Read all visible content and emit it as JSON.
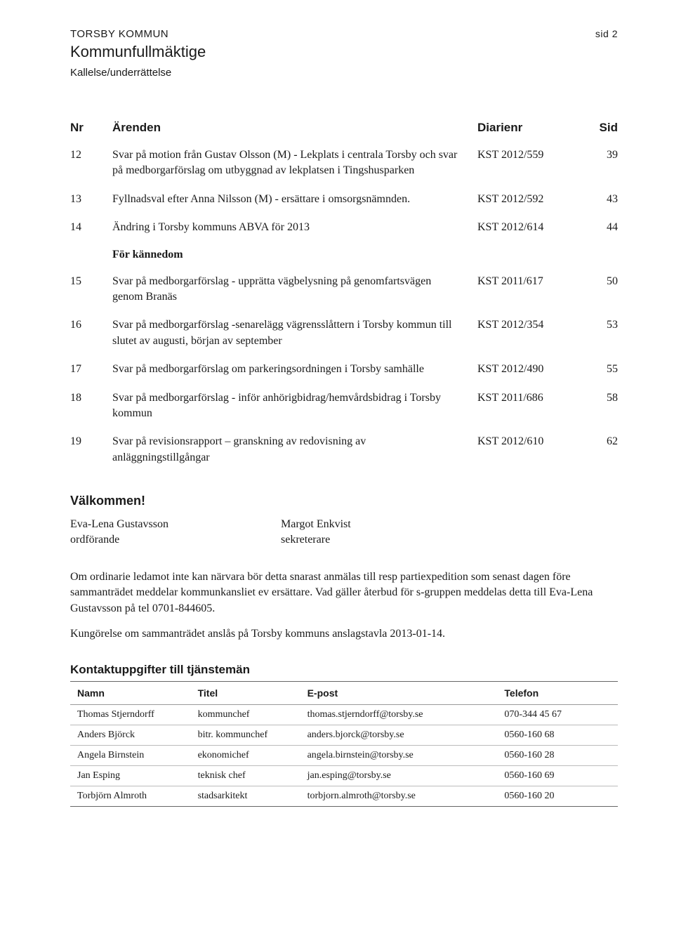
{
  "header": {
    "org": "TORSBY KOMMUN",
    "body": "Kommunfullmäktige",
    "doc_type": "Kallelse/underrättelse",
    "page": "sid 2"
  },
  "agenda": {
    "columns": {
      "nr": "Nr",
      "arende": "Ärenden",
      "diarie": "Diarienr",
      "sid": "Sid"
    },
    "section_label": "För kännedom",
    "rows_top": [
      {
        "nr": "12",
        "arende": "Svar på motion från Gustav Olsson (M) - Lekplats i centrala Torsby och svar på medborgarförslag om utbyggnad av lekplatsen i Tingshusparken",
        "diarie": "KST 2012/559",
        "sid": "39"
      },
      {
        "nr": "13",
        "arende": "Fyllnadsval efter Anna Nilsson (M) - ersättare i omsorgsnämnden.",
        "diarie": "KST 2012/592",
        "sid": "43"
      },
      {
        "nr": "14",
        "arende": "Ändring i Torsby kommuns ABVA för 2013",
        "diarie": "KST 2012/614",
        "sid": "44"
      }
    ],
    "rows_info": [
      {
        "nr": "15",
        "arende": "Svar på medborgarförslag - upprätta vägbelysning på genomfartsvägen genom Branäs",
        "diarie": "KST 2011/617",
        "sid": "50"
      },
      {
        "nr": "16",
        "arende": "Svar på medborgarförslag -senarelägg vägrensslåttern i Torsby kommun till slutet av augusti, början av september",
        "diarie": "KST 2012/354",
        "sid": "53"
      },
      {
        "nr": "17",
        "arende": "Svar på medborgarförslag om parkeringsordningen i Torsby samhälle",
        "diarie": "KST 2012/490",
        "sid": "55"
      },
      {
        "nr": "18",
        "arende": "Svar på medborgarförslag - inför anhörigbidrag/hemvårdsbidrag i Torsby kommun",
        "diarie": "KST 2011/686",
        "sid": "58"
      },
      {
        "nr": "19",
        "arende": "Svar på revisionsrapport – granskning av redovisning av anläggningstillgångar",
        "diarie": "KST 2012/610",
        "sid": "62"
      }
    ]
  },
  "welcome": "Välkommen!",
  "signatures": {
    "left_name": "Eva-Lena Gustavsson",
    "left_title": "ordförande",
    "right_name": "Margot Enkvist",
    "right_title": "sekreterare"
  },
  "info1": "Om ordinarie ledamot inte kan närvara bör detta snarast anmälas till resp partiexpedition som senast dagen före sammanträdet meddelar kommunkansliet ev ersättare. Vad gäller återbud för s-gruppen meddelas detta till Eva-Lena Gustavsson på tel 0701-844605.",
  "info2": "Kungörelse om sammanträdet anslås på Torsby kommuns anslagstavla 2013-01-14.",
  "contacts": {
    "heading": "Kontaktuppgifter till tjänstemän",
    "columns": {
      "namn": "Namn",
      "titel": "Titel",
      "epost": "E-post",
      "telefon": "Telefon"
    },
    "rows": [
      {
        "namn": "Thomas Stjerndorff",
        "titel": "kommunchef",
        "epost": "thomas.stjerndorff@torsby.se",
        "telefon": "070-344 45 67"
      },
      {
        "namn": "Anders Björck",
        "titel": "bitr. kommunchef",
        "epost": "anders.bjorck@torsby.se",
        "telefon": "0560-160 68"
      },
      {
        "namn": "Angela Birnstein",
        "titel": "ekonomichef",
        "epost": "angela.birnstein@torsby.se",
        "telefon": "0560-160 28"
      },
      {
        "namn": "Jan Esping",
        "titel": "teknisk chef",
        "epost": "jan.esping@torsby.se",
        "telefon": "0560-160 69"
      },
      {
        "namn": "Torbjörn Almroth",
        "titel": "stadsarkitekt",
        "epost": "torbjorn.almroth@torsby.se",
        "telefon": "0560-160 20"
      }
    ]
  }
}
